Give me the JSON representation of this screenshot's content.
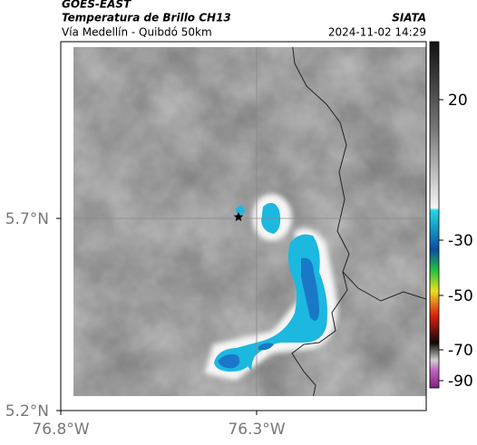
{
  "header": {
    "satellite": "GOES-EAST",
    "product": "Temperatura de Brillo CH13",
    "route": "Vía Medellín - Quibdó 50km",
    "source": "SIATA",
    "timestamp": "2024-11-02 14:29"
  },
  "axes": {
    "lat_ticks": [
      "5.7°N",
      "5.2°N"
    ],
    "lon_ticks": [
      "76.8°W",
      "76.3°W"
    ]
  },
  "colorbar": {
    "ticks": [
      20,
      -30,
      -50,
      -70,
      -90
    ]
  }
}
